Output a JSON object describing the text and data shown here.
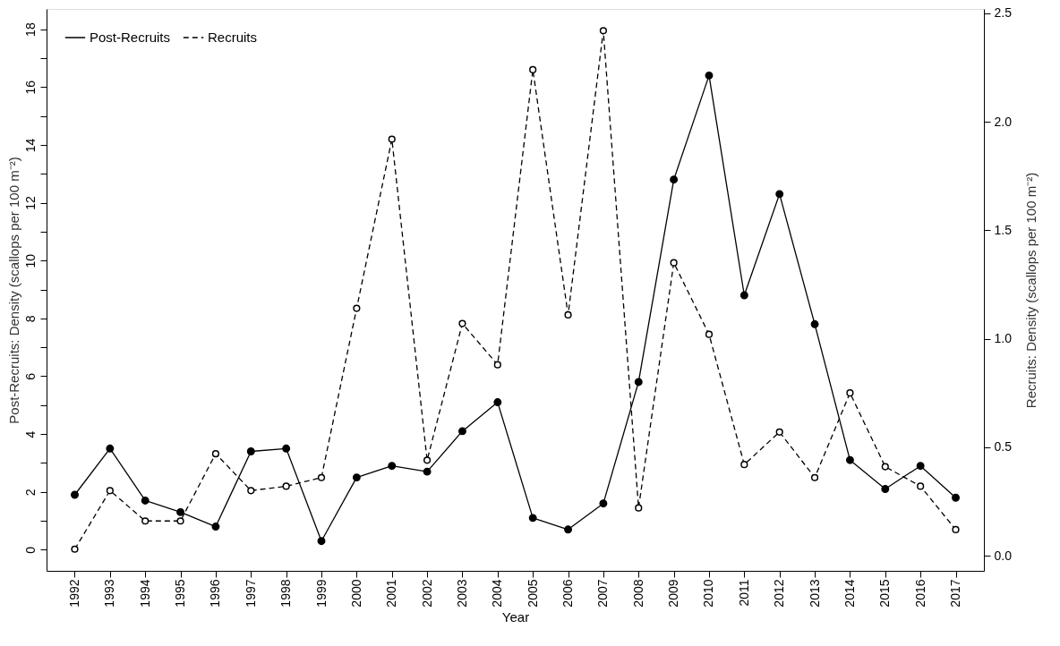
{
  "chart_data": {
    "type": "line",
    "xlabel": "Year",
    "ylabel": "Post-Recruits: Density (scallops per 100 m⁻²)",
    "y2label": "Recruits: Density (scallops per 100 m⁻²)",
    "categories": [
      "1992",
      "1993",
      "1994",
      "1995",
      "1996",
      "1997",
      "1998",
      "1999",
      "2000",
      "2001",
      "2002",
      "2003",
      "2004",
      "2005",
      "2006",
      "2007",
      "2008",
      "2009",
      "2010",
      "2011",
      "2012",
      "2013",
      "2014",
      "2015",
      "2016",
      "2017"
    ],
    "series": [
      {
        "name": "Post-Recruits",
        "color": "#000000",
        "line_style": "solid",
        "marker": "circle",
        "values": [
          1.9,
          3.5,
          1.7,
          1.3,
          0.8,
          3.4,
          3.5,
          0.3,
          2.5,
          2.9,
          2.7,
          4.1,
          5.1,
          1.1,
          0.7,
          1.6,
          5.8,
          12.8,
          16.4,
          8.8,
          12.3,
          7.8,
          3.1,
          2.1,
          2.9,
          1.8
        ]
      },
      {
        "name": "Recruits",
        "color": "#000000",
        "line_style": "dashed",
        "marker": "circle",
        "axis": "y2",
        "values": [
          0.03,
          0.3,
          0.16,
          0.16,
          0.47,
          0.3,
          0.32,
          0.36,
          1.14,
          1.92,
          0.44,
          1.07,
          0.88,
          2.24,
          1.11,
          2.42,
          0.22,
          1.35,
          1.02,
          0.42,
          0.57,
          0.36,
          0.75,
          0.41,
          0.32,
          0.12
        ]
      }
    ],
    "ylim": [
      -0.73,
      18.7
    ],
    "yticks": [
      0,
      {
        "value": 1,
        "label": null
      },
      2,
      {
        "value": 3,
        "label": null
      },
      4,
      {
        "value": 5,
        "label": null
      },
      6,
      {
        "value": 7,
        "label": null
      },
      8,
      {
        "value": 9,
        "label": null
      },
      10,
      {
        "value": 11,
        "label": null
      },
      12,
      {
        "value": 13,
        "label": null
      },
      14,
      {
        "value": 15,
        "label": null
      },
      16,
      {
        "value": 17,
        "label": null
      },
      18
    ],
    "y2lim": [
      -0.07,
      2.52
    ],
    "y2ticks": [
      {
        "value": 0,
        "label": "0.0"
      },
      {
        "value": 0.5,
        "label": "0.5"
      },
      {
        "value": 1,
        "label": "1.0"
      },
      {
        "value": 1.5,
        "label": "1.5"
      },
      {
        "value": 2,
        "label": "2.0"
      },
      {
        "value": 2.5,
        "label": "2.5"
      }
    ],
    "grid": false,
    "legend": "top left"
  }
}
